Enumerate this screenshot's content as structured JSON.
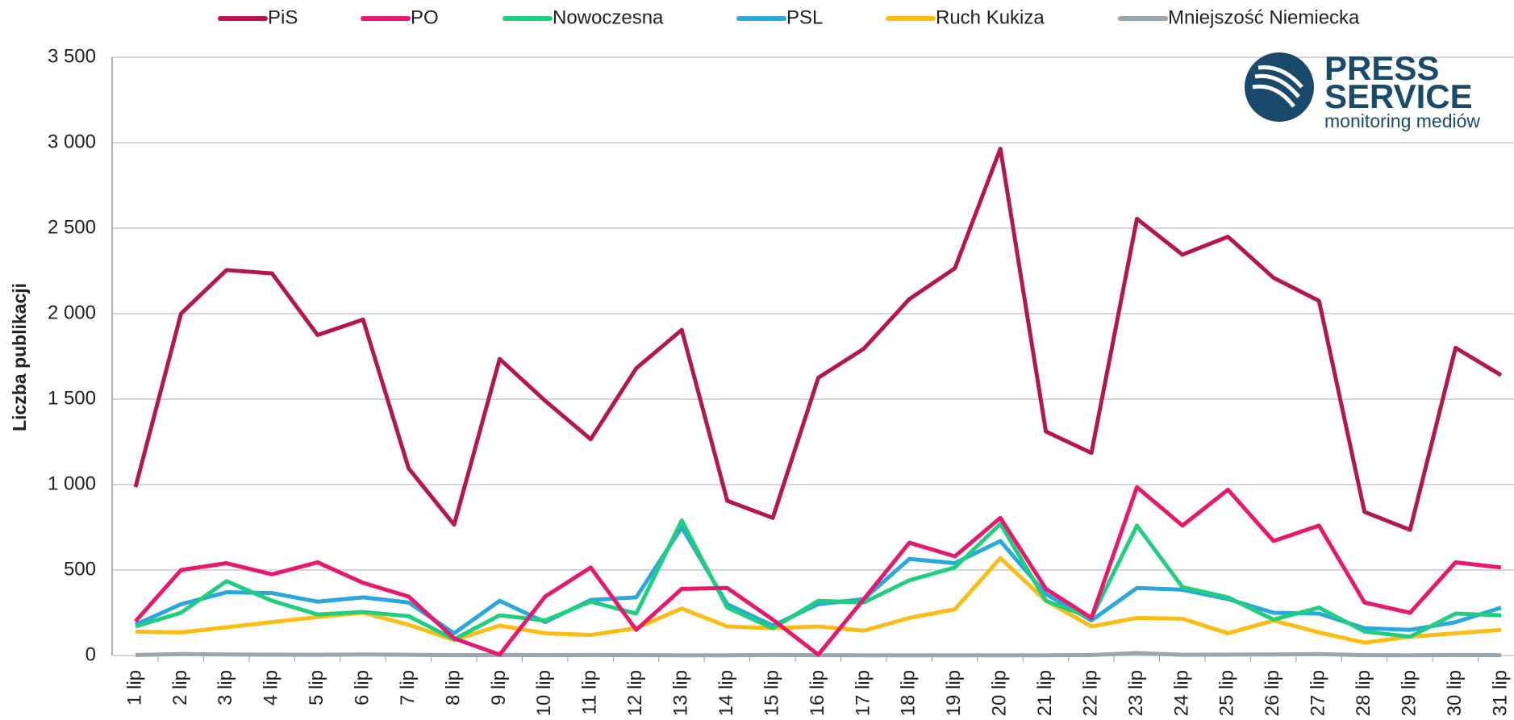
{
  "chart_data": {
    "type": "line",
    "y_axis_label": "Liczba publikacji",
    "logo": {
      "line1": "PRESS",
      "line2": "SERVICE",
      "line3": "monitoring mediów"
    },
    "categories": [
      "1 lip",
      "2 lip",
      "3 lip",
      "4 lip",
      "5 lip",
      "6 lip",
      "7 lip",
      "8 lip",
      "9 lip",
      "10 lip",
      "11 lip",
      "12 lip",
      "13 lip",
      "14 lip",
      "15 lip",
      "16 lip",
      "17 lip",
      "18 lip",
      "19 lip",
      "20 lip",
      "21 lip",
      "22 lip",
      "23 lip",
      "24 lip",
      "25 lip",
      "26 lip",
      "27 lip",
      "28 lip",
      "29 lip",
      "30 lip",
      "31 lip"
    ],
    "series": [
      {
        "name": "PiS",
        "color": "#b5174b",
        "values": [
          985,
          2000,
          2255,
          2235,
          1875,
          1965,
          1095,
          765,
          1735,
          1490,
          1265,
          1680,
          1905,
          905,
          805,
          1625,
          1795,
          2085,
          2265,
          2965,
          1310,
          1185,
          2555,
          2345,
          2450,
          2210,
          2075,
          840,
          735,
          1800,
          1640
        ]
      },
      {
        "name": "PO",
        "color": "#e8186d",
        "values": [
          200,
          500,
          540,
          475,
          545,
          425,
          345,
          100,
          5,
          345,
          515,
          150,
          390,
          395,
          210,
          5,
          330,
          660,
          580,
          805,
          390,
          220,
          985,
          760,
          970,
          670,
          760,
          310,
          250,
          545,
          515
        ]
      },
      {
        "name": "Nowoczesna",
        "color": "#1fcf7f",
        "values": [
          170,
          250,
          435,
          320,
          240,
          255,
          230,
          95,
          235,
          205,
          315,
          245,
          790,
          280,
          160,
          320,
          310,
          440,
          515,
          770,
          320,
          220,
          760,
          400,
          340,
          210,
          280,
          140,
          110,
          245,
          235
        ]
      },
      {
        "name": "PSL",
        "color": "#2aa7dc",
        "values": [
          180,
          300,
          370,
          365,
          315,
          340,
          310,
          130,
          320,
          195,
          325,
          340,
          750,
          300,
          175,
          300,
          330,
          565,
          540,
          670,
          360,
          205,
          395,
          385,
          330,
          250,
          245,
          160,
          150,
          195,
          280
        ]
      },
      {
        "name": "Ruch Kukiza",
        "color": "#fbbd14",
        "values": [
          140,
          135,
          165,
          195,
          225,
          250,
          180,
          90,
          175,
          130,
          120,
          160,
          275,
          170,
          160,
          170,
          145,
          220,
          270,
          570,
          320,
          170,
          220,
          215,
          130,
          205,
          135,
          75,
          110,
          130,
          150
        ]
      },
      {
        "name": "Mniejszość Niemiecka",
        "color": "#9aa5ad",
        "values": [
          3,
          8,
          6,
          5,
          4,
          6,
          4,
          2,
          3,
          2,
          3,
          2,
          1,
          1,
          3,
          2,
          1,
          1,
          1,
          1,
          1,
          3,
          14,
          4,
          5,
          6,
          8,
          2,
          1,
          3,
          2
        ]
      }
    ],
    "ylim": [
      0,
      3500
    ],
    "yticks": [
      0,
      500,
      {
        "value": 1000,
        "label": "1 000"
      },
      {
        "value": 1500,
        "label": "1 500"
      },
      {
        "value": 2000,
        "label": "2 000"
      },
      {
        "value": 2500,
        "label": "2 500"
      },
      {
        "value": 3000,
        "label": "3 000"
      },
      {
        "value": 3500,
        "label": "3 500"
      }
    ],
    "grid": true,
    "legend": "top"
  }
}
